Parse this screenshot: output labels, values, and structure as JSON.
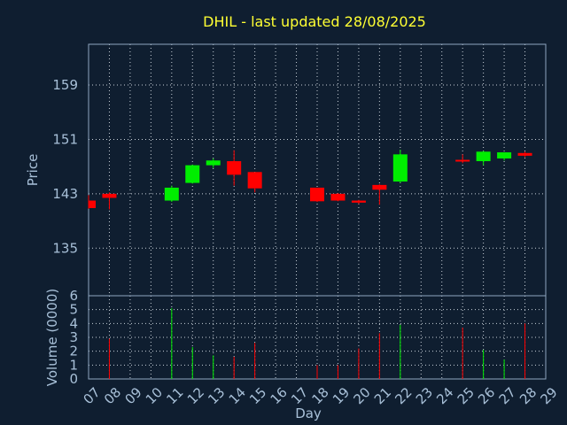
{
  "chart_data": {
    "type": "candlestick",
    "title": "DHIL - last updated 28/08/2025",
    "xlabel": "Day",
    "price_panel": {
      "ylabel": "Price",
      "ylim": [
        128,
        165
      ],
      "yticks": [
        135,
        143,
        151,
        159
      ],
      "grid": true
    },
    "volume_panel": {
      "ylabel": "Volume (0000)",
      "ylim": [
        0,
        6
      ],
      "yticks": [
        0,
        1,
        2,
        3,
        4,
        5,
        6
      ],
      "grid": true
    },
    "x_tick_labels": [
      "07",
      "08",
      "09",
      "10",
      "11",
      "12",
      "13",
      "14",
      "15",
      "16",
      "17",
      "18",
      "19",
      "20",
      "21",
      "22",
      "23",
      "24",
      "25",
      "26",
      "27",
      "28",
      "29"
    ],
    "candles": [
      {
        "day": "07",
        "open": 142.0,
        "high": 142.8,
        "low": 140.8,
        "close": 140.9,
        "volume": 0
      },
      {
        "day": "08",
        "open": 143.0,
        "high": 143.2,
        "low": 140.7,
        "close": 142.4,
        "volume": 2.9
      },
      {
        "day": "11",
        "open": 142.0,
        "high": 144.2,
        "low": 141.8,
        "close": 143.9,
        "volume": 5.1
      },
      {
        "day": "12",
        "open": 144.6,
        "high": 147.3,
        "low": 144.5,
        "close": 147.2,
        "volume": 2.3
      },
      {
        "day": "13",
        "open": 147.2,
        "high": 148.2,
        "low": 146.8,
        "close": 147.9,
        "volume": 1.7
      },
      {
        "day": "14",
        "open": 147.8,
        "high": 149.4,
        "low": 144.2,
        "close": 145.8,
        "volume": 1.6
      },
      {
        "day": "15",
        "open": 146.2,
        "high": 146.2,
        "low": 143.2,
        "close": 143.8,
        "volume": 2.6
      },
      {
        "day": "18",
        "open": 143.9,
        "high": 143.9,
        "low": 141.8,
        "close": 141.9,
        "volume": 1.0
      },
      {
        "day": "19",
        "open": 143.0,
        "high": 143.1,
        "low": 141.9,
        "close": 142.0,
        "volume": 1.0
      },
      {
        "day": "20",
        "open": 142.0,
        "high": 142.1,
        "low": 141.5,
        "close": 141.7,
        "volume": 2.2
      },
      {
        "day": "21",
        "open": 144.3,
        "high": 144.4,
        "low": 141.4,
        "close": 143.6,
        "volume": 3.3
      },
      {
        "day": "22",
        "open": 144.8,
        "high": 149.5,
        "low": 144.6,
        "close": 148.8,
        "volume": 3.9
      },
      {
        "day": "25",
        "open": 148.0,
        "high": 148.8,
        "low": 147.5,
        "close": 147.9,
        "volume": 3.7
      },
      {
        "day": "26",
        "open": 147.8,
        "high": 149.3,
        "low": 147.2,
        "close": 149.2,
        "volume": 2.1
      },
      {
        "day": "27",
        "open": 148.2,
        "high": 149.1,
        "low": 147.9,
        "close": 149.1,
        "volume": 1.4
      },
      {
        "day": "28",
        "open": 149.0,
        "high": 149.2,
        "low": 148.4,
        "close": 148.6,
        "volume": 4.0
      }
    ],
    "colors": {
      "up": "#00ee00",
      "down": "#ff0000",
      "background": "#0f1e30",
      "title": "#ffff33",
      "text": "#a8c0d8"
    }
  }
}
